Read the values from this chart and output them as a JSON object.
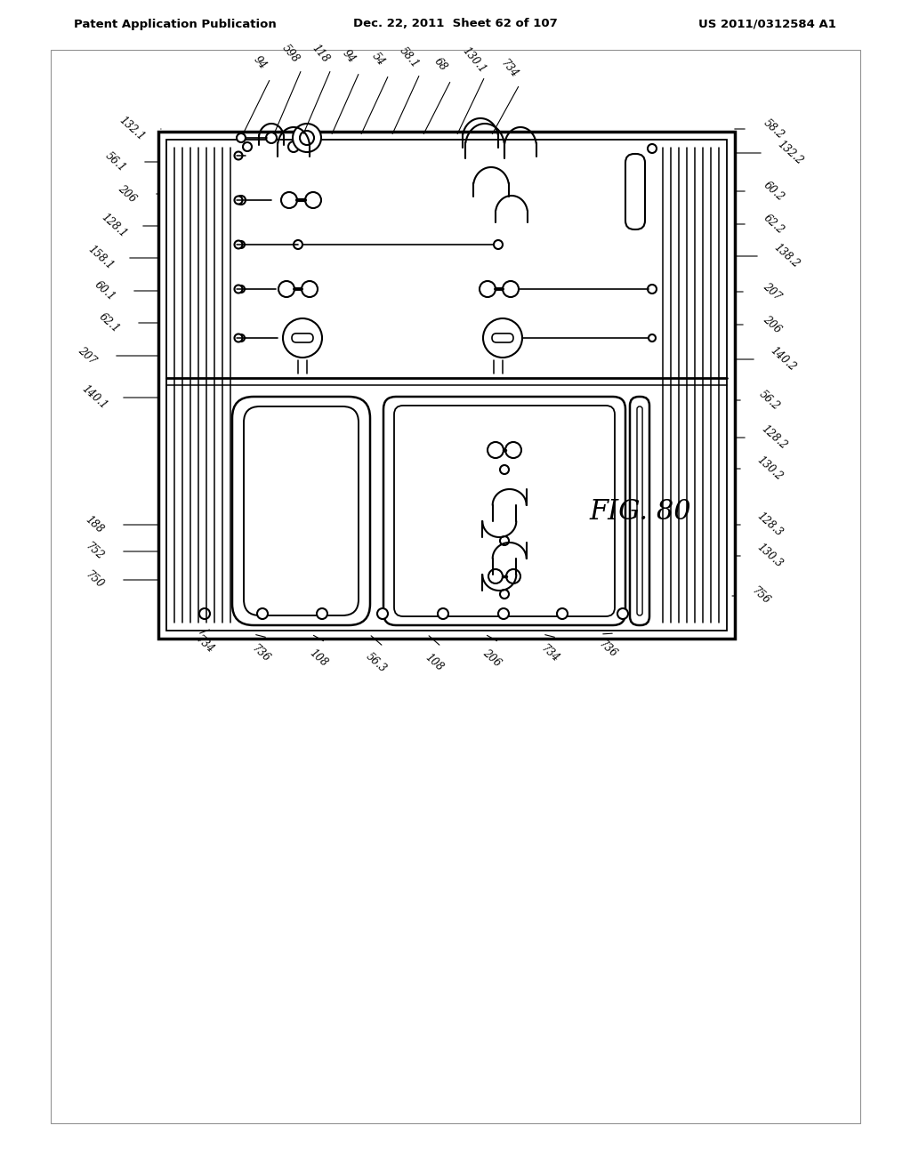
{
  "header_left": "Patent Application Publication",
  "header_mid": "Dec. 22, 2011  Sheet 62 of 107",
  "header_right": "US 2011/0312584 A1",
  "fig_label": "FIG. 80",
  "bg": "#ffffff",
  "left_labels": [
    [
      "132.1",
      148,
      1175
    ],
    [
      "56.1",
      130,
      1138
    ],
    [
      "206",
      143,
      1102
    ],
    [
      "128.1",
      128,
      1066
    ],
    [
      "158.1",
      113,
      1030
    ],
    [
      "60.1",
      118,
      993
    ],
    [
      "62.1",
      123,
      957
    ],
    [
      "207",
      98,
      920
    ],
    [
      "140.1",
      106,
      873
    ],
    [
      "188",
      106,
      730
    ],
    [
      "752",
      106,
      700
    ],
    [
      "750",
      106,
      668
    ]
  ],
  "top_labels": [
    [
      "94",
      292,
      1250
    ],
    [
      "598",
      327,
      1260
    ],
    [
      "118",
      360,
      1260
    ],
    [
      "94",
      392,
      1257
    ],
    [
      "54",
      425,
      1254
    ],
    [
      "58.1",
      460,
      1255
    ],
    [
      "68",
      495,
      1248
    ],
    [
      "130.1",
      533,
      1252
    ],
    [
      "734",
      572,
      1243
    ]
  ],
  "right_labels": [
    [
      "58.2",
      870,
      1175
    ],
    [
      "132.2",
      888,
      1148
    ],
    [
      "60.2",
      870,
      1105
    ],
    [
      "62.2",
      870,
      1068
    ],
    [
      "138.2",
      884,
      1032
    ],
    [
      "207",
      868,
      992
    ],
    [
      "206",
      868,
      955
    ],
    [
      "140.2",
      880,
      916
    ],
    [
      "56.2",
      865,
      870
    ],
    [
      "128.2",
      870,
      828
    ],
    [
      "130.2",
      865,
      793
    ],
    [
      "128.3",
      865,
      730
    ],
    [
      "130.3",
      865,
      695
    ],
    [
      "756",
      855,
      650
    ]
  ],
  "bottom_labels": [
    [
      "734",
      230,
      595
    ],
    [
      "736",
      293,
      585
    ],
    [
      "108",
      358,
      580
    ],
    [
      "56.3",
      423,
      575
    ],
    [
      "108",
      488,
      575
    ],
    [
      "206",
      553,
      580
    ],
    [
      "734",
      618,
      585
    ],
    [
      "736",
      683,
      590
    ]
  ]
}
